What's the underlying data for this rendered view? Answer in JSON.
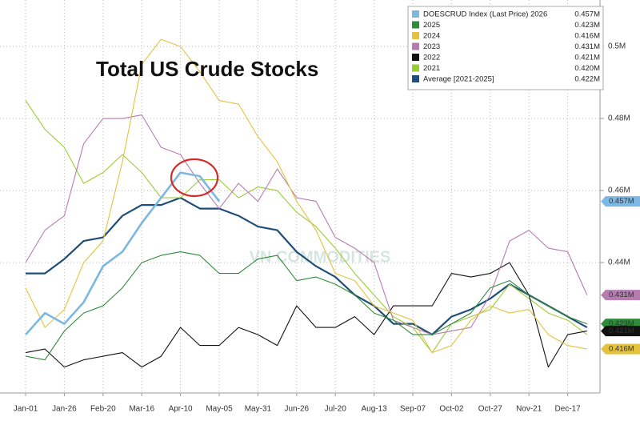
{
  "chart_data": {
    "type": "line",
    "title": "Total US Crude Stocks",
    "watermark": "VN COMMODITIES",
    "categories": [
      "Jan-01",
      null,
      "Jan-26",
      null,
      "Feb-20",
      null,
      "Mar-16",
      null,
      "Apr-10",
      null,
      "May-05",
      null,
      "May-31",
      null,
      "Jun-26",
      null,
      "Jul-20",
      null,
      "Aug-13",
      null,
      "Sep-07",
      null,
      "Oct-02",
      null,
      "Oct-27",
      null,
      "Nov-21",
      null,
      "Dec-17",
      null
    ],
    "ylim": [
      0.4038,
      0.5129
    ],
    "yticks": [
      {
        "value": 0.44,
        "label": "0.44M"
      },
      {
        "value": 0.46,
        "label": "0.46M"
      },
      {
        "value": 0.48,
        "label": "0.48M"
      },
      {
        "value": 0.5,
        "label": "0.5M"
      }
    ],
    "grid": true,
    "legend": "top-right",
    "series": [
      {
        "name": "DOESCRUD Index (Last Price) 2026",
        "color": "#7db8e2",
        "width": 2.6,
        "tagged": true,
        "last": {
          "value": 0.457,
          "label": "0.457M"
        },
        "values": [
          0.42,
          0.426,
          0.423,
          0.429,
          0.439,
          0.443,
          0.451,
          0.458,
          0.465,
          0.464,
          0.457,
          null,
          null,
          null,
          null,
          null,
          null,
          null,
          null,
          null,
          null,
          null,
          null,
          null,
          null,
          null,
          null,
          null,
          null,
          null
        ]
      },
      {
        "name": "2025",
        "color": "#2e8b3a",
        "width": 1.1,
        "tagged": true,
        "last": {
          "value": 0.423,
          "label": "0.423M"
        },
        "values": [
          0.414,
          0.413,
          0.421,
          0.426,
          0.428,
          0.433,
          0.44,
          0.442,
          0.443,
          0.442,
          0.437,
          0.437,
          0.441,
          0.442,
          0.435,
          0.436,
          0.434,
          0.431,
          0.426,
          0.424,
          0.42,
          0.42,
          0.423,
          0.426,
          0.433,
          0.435,
          0.431,
          0.428,
          0.425,
          0.423
        ]
      },
      {
        "name": "2024",
        "color": "#e3c23e",
        "width": 1.1,
        "tagged": true,
        "last": {
          "value": 0.416,
          "label": "0.416M"
        },
        "values": [
          0.433,
          0.422,
          0.427,
          0.44,
          0.446,
          0.468,
          0.495,
          0.502,
          0.5,
          0.493,
          0.485,
          0.484,
          0.475,
          0.468,
          0.457,
          0.449,
          0.437,
          0.435,
          0.428,
          0.426,
          0.424,
          0.415,
          0.417,
          0.424,
          0.428,
          0.426,
          0.427,
          0.42,
          0.417,
          0.416
        ]
      },
      {
        "name": "2023",
        "color": "#b57cb0",
        "width": 1.1,
        "tagged": true,
        "last": {
          "value": 0.431,
          "label": "0.431M"
        },
        "values": [
          0.44,
          0.449,
          0.453,
          0.473,
          0.48,
          0.48,
          0.481,
          0.472,
          0.47,
          0.462,
          0.455,
          0.462,
          0.457,
          0.466,
          0.458,
          0.457,
          0.447,
          0.444,
          0.44,
          0.424,
          0.422,
          0.42,
          0.421,
          0.422,
          0.431,
          0.446,
          0.449,
          0.444,
          0.443,
          0.431
        ]
      },
      {
        "name": "2022",
        "color": "#111111",
        "width": 1.1,
        "tagged": true,
        "last": {
          "value": 0.421,
          "label": "0.421M"
        },
        "values": [
          0.415,
          0.416,
          0.411,
          0.413,
          0.414,
          0.415,
          0.411,
          0.414,
          0.422,
          0.417,
          0.417,
          0.422,
          0.42,
          0.417,
          0.428,
          0.422,
          0.422,
          0.425,
          0.42,
          0.428,
          0.428,
          0.428,
          0.437,
          0.436,
          0.437,
          0.44,
          0.431,
          0.411,
          0.42,
          0.421
        ]
      },
      {
        "name": "2021",
        "color": "#9acd32",
        "width": 1.1,
        "tagged": false,
        "last": {
          "value": 0.42,
          "label": "0.420M"
        },
        "values": [
          0.485,
          0.477,
          0.472,
          0.462,
          0.465,
          0.47,
          0.465,
          0.458,
          0.458,
          0.463,
          0.463,
          0.458,
          0.461,
          0.46,
          0.454,
          0.45,
          0.444,
          0.437,
          0.431,
          0.425,
          0.422,
          0.415,
          0.423,
          0.425,
          0.427,
          0.434,
          0.43,
          0.426,
          0.424,
          0.42
        ]
      },
      {
        "name": "Average [2021-2025]",
        "color": "#1f4e79",
        "width": 2.2,
        "tagged": false,
        "last": {
          "value": 0.422,
          "label": "0.422M"
        },
        "values": [
          0.437,
          0.437,
          0.441,
          0.446,
          0.447,
          0.453,
          0.456,
          0.456,
          0.458,
          0.455,
          0.455,
          0.453,
          0.45,
          0.449,
          0.443,
          0.439,
          0.436,
          0.431,
          0.428,
          0.423,
          0.423,
          0.42,
          0.425,
          0.427,
          0.43,
          0.434,
          0.431,
          0.428,
          0.425,
          0.422
        ]
      }
    ]
  }
}
